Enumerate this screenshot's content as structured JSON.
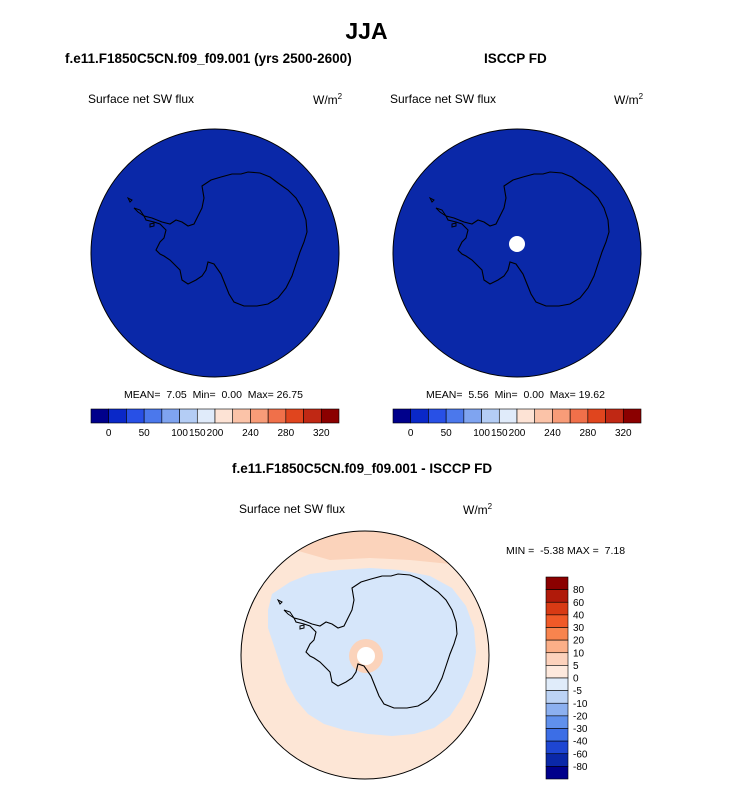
{
  "title": "JJA",
  "panels": [
    {
      "case_title": "f.e11.F1850C5CN.f09_f09.001 (yrs 2500-2600)",
      "variable": "Surface net SW flux",
      "units": "W/m",
      "units_sup": "2",
      "mean_label": "MEAN=",
      "mean": "7.05",
      "min_label": "Min=",
      "min": "0.00",
      "max_label": "Max=",
      "max": "26.75",
      "has_pole_hole": false
    },
    {
      "case_title": "ISCCP FD",
      "variable": "Surface net SW flux",
      "units": "W/m",
      "units_sup": "2",
      "mean_label": "MEAN=",
      "mean": "5.56",
      "min_label": "Min=",
      "min": "0.00",
      "max_label": "Max=",
      "max": "19.62",
      "has_pole_hole": true
    }
  ],
  "diff_panel": {
    "case_title": "f.e11.F1850C5CN.f09_f09.001 - ISCCP FD",
    "variable": "Surface net SW flux",
    "units": "W/m",
    "units_sup": "2",
    "min_label": "MIN =",
    "min": "-5.38",
    "max_label": "MAX =",
    "max": "7.18"
  },
  "colorbar_top": {
    "labels": [
      "0",
      "50",
      "100",
      "150",
      "200",
      "240",
      "280",
      "320"
    ],
    "colors": [
      "#00008b",
      "#0a28c8",
      "#2850e6",
      "#4b78ec",
      "#7fa4f0",
      "#b4cdf5",
      "#e0ebfa",
      "#fde3d5",
      "#fbc3a8",
      "#f89c78",
      "#f0704a",
      "#e0451e",
      "#c02814",
      "#8b0000"
    ]
  },
  "colorbar_diff": {
    "labels": [
      "80",
      "60",
      "40",
      "30",
      "20",
      "10",
      "5",
      "0",
      "-5",
      "-10",
      "-20",
      "-30",
      "-40",
      "-60",
      "-80"
    ],
    "colors": [
      "#8b0000",
      "#b01a0a",
      "#d83a14",
      "#f05a28",
      "#f8844e",
      "#fbaf88",
      "#fdd2bc",
      "#fee9dd",
      "#e0ecfa",
      "#bcd3f5",
      "#8cb0f0",
      "#6090ec",
      "#3c6ee6",
      "#1e46d2",
      "#0a28a8",
      "#00008b"
    ]
  },
  "map_colors": {
    "field_top": "#0a28a8",
    "diff_land": "#d6e6fa",
    "diff_ocean": "#fde6d6",
    "diff_warm_patch": "#fbd3bb",
    "pole_hole": "#ffffff",
    "coast": "#000000"
  }
}
